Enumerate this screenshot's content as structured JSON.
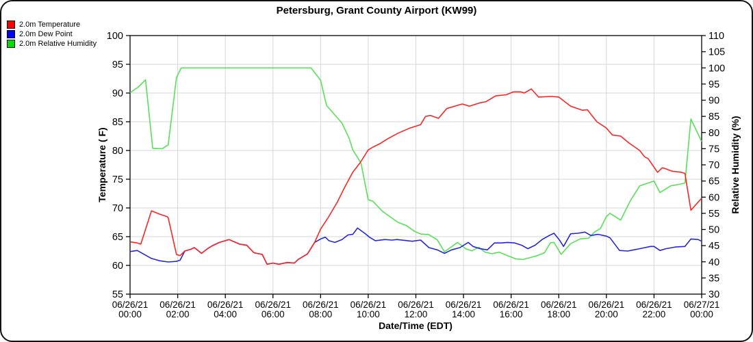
{
  "chart_data": {
    "type": "line",
    "title": "Petersburg, Grant County Airport (KW99)",
    "xlabel": "Date/Time (EDT)",
    "ylabel_left": "Temperature ( F)",
    "ylabel_right": "Relative Humidity (%)",
    "left_axis": {
      "min": 55,
      "max": 100,
      "step": 5,
      "ticks": [
        55,
        60,
        65,
        70,
        75,
        80,
        85,
        90,
        95,
        100
      ]
    },
    "right_axis": {
      "min": 30,
      "max": 110,
      "step": 5,
      "ticks": [
        30,
        35,
        40,
        45,
        50,
        55,
        60,
        65,
        70,
        75,
        80,
        85,
        90,
        95,
        100,
        105,
        110
      ]
    },
    "x_axis": {
      "hours_min": 0,
      "hours_max": 24,
      "tick_every_hours": 2
    },
    "x_ticks": [
      {
        "date": "06/26/21",
        "time": "00:00",
        "hour": 0
      },
      {
        "date": "06/26/21",
        "time": "02:00",
        "hour": 2
      },
      {
        "date": "06/26/21",
        "time": "04:00",
        "hour": 4
      },
      {
        "date": "06/26/21",
        "time": "06:00",
        "hour": 6
      },
      {
        "date": "06/26/21",
        "time": "08:00",
        "hour": 8
      },
      {
        "date": "06/26/21",
        "time": "10:00",
        "hour": 10
      },
      {
        "date": "06/26/21",
        "time": "12:00",
        "hour": 12
      },
      {
        "date": "06/26/21",
        "time": "14:00",
        "hour": 14
      },
      {
        "date": "06/26/21",
        "time": "16:00",
        "hour": 16
      },
      {
        "date": "06/26/21",
        "time": "18:00",
        "hour": 18
      },
      {
        "date": "06/26/21",
        "time": "20:00",
        "hour": 20
      },
      {
        "date": "06/26/21",
        "time": "22:00",
        "hour": 22
      },
      {
        "date": "06/27/21",
        "time": "00:00",
        "hour": 24
      }
    ],
    "legend": [
      {
        "label": "2.0m Temperature",
        "color": "#ff0000"
      },
      {
        "label": "2.0m Dew Point",
        "color": "#0000ff"
      },
      {
        "label": "2.0m Relative Humidity",
        "color": "#00dd00"
      }
    ],
    "colors": {
      "grid": "#d6d6d6",
      "axis": "#000000",
      "temperature_line": "#ff2222",
      "dew_point_line": "#2424e0",
      "humidity_line": "#55e055"
    },
    "grid": {
      "horizontal": true,
      "vertical": true
    },
    "series": [
      {
        "id": "temperature",
        "name": "2.0m Temperature",
        "axis": "left",
        "color": "#ff2222",
        "units": "F",
        "points": [
          [
            0.0,
            64.1
          ],
          [
            0.3,
            63.9
          ],
          [
            0.45,
            63.7
          ],
          [
            0.9,
            69.5
          ],
          [
            1.25,
            68.9
          ],
          [
            1.55,
            68.5
          ],
          [
            1.6,
            68.3
          ],
          [
            1.95,
            61.9
          ],
          [
            2.1,
            61.7
          ],
          [
            2.3,
            62.5
          ],
          [
            2.55,
            62.8
          ],
          [
            2.7,
            63.1
          ],
          [
            3.0,
            62.1
          ],
          [
            3.25,
            62.9
          ],
          [
            3.45,
            63.4
          ],
          [
            3.75,
            64.0
          ],
          [
            4.0,
            64.3
          ],
          [
            4.15,
            64.5
          ],
          [
            4.6,
            63.7
          ],
          [
            4.9,
            63.5
          ],
          [
            5.2,
            62.2
          ],
          [
            5.55,
            61.9
          ],
          [
            5.75,
            60.2
          ],
          [
            6.0,
            60.4
          ],
          [
            6.25,
            60.2
          ],
          [
            6.6,
            60.5
          ],
          [
            6.9,
            60.4
          ],
          [
            7.05,
            61.0
          ],
          [
            7.45,
            62.0
          ],
          [
            7.75,
            64.0
          ],
          [
            8.0,
            66.3
          ],
          [
            8.3,
            68.2
          ],
          [
            8.7,
            71.0
          ],
          [
            9.0,
            73.5
          ],
          [
            9.35,
            76.2
          ],
          [
            9.65,
            77.8
          ],
          [
            10.0,
            80.1
          ],
          [
            10.2,
            80.6
          ],
          [
            10.5,
            81.2
          ],
          [
            10.8,
            82.0
          ],
          [
            11.25,
            83.0
          ],
          [
            11.75,
            83.9
          ],
          [
            12.2,
            84.5
          ],
          [
            12.4,
            85.9
          ],
          [
            12.6,
            86.1
          ],
          [
            12.95,
            85.6
          ],
          [
            13.3,
            87.3
          ],
          [
            13.95,
            88.1
          ],
          [
            14.25,
            87.7
          ],
          [
            14.7,
            88.3
          ],
          [
            14.95,
            88.5
          ],
          [
            15.35,
            89.5
          ],
          [
            15.8,
            89.7
          ],
          [
            16.1,
            90.2
          ],
          [
            16.4,
            90.2
          ],
          [
            16.55,
            90.0
          ],
          [
            16.85,
            90.7
          ],
          [
            17.15,
            89.3
          ],
          [
            17.7,
            89.4
          ],
          [
            18.0,
            89.3
          ],
          [
            18.5,
            87.7
          ],
          [
            19.0,
            87.0
          ],
          [
            19.2,
            87.1
          ],
          [
            19.6,
            85.0
          ],
          [
            20.0,
            83.9
          ],
          [
            20.25,
            82.7
          ],
          [
            20.6,
            82.5
          ],
          [
            20.95,
            81.3
          ],
          [
            21.4,
            80.0
          ],
          [
            21.6,
            78.9
          ],
          [
            21.75,
            78.6
          ],
          [
            22.0,
            77.1
          ],
          [
            22.15,
            76.2
          ],
          [
            22.35,
            77.0
          ],
          [
            22.5,
            76.8
          ],
          [
            22.75,
            76.4
          ],
          [
            23.15,
            76.2
          ],
          [
            23.3,
            76.0
          ],
          [
            23.55,
            69.6
          ],
          [
            24.0,
            71.7
          ]
        ]
      },
      {
        "id": "dew-point",
        "name": "2.0m Dew Point",
        "axis": "left",
        "color": "#2424e0",
        "units": "F",
        "points": [
          [
            0.0,
            62.4
          ],
          [
            0.3,
            62.6
          ],
          [
            0.9,
            61.2
          ],
          [
            1.25,
            60.8
          ],
          [
            1.6,
            60.6
          ],
          [
            1.95,
            60.7
          ],
          [
            2.1,
            60.9
          ],
          [
            2.3,
            62.5
          ],
          [
            2.55,
            62.8
          ],
          [
            2.7,
            63.1
          ],
          [
            3.0,
            62.1
          ],
          [
            3.25,
            62.9
          ],
          [
            3.45,
            63.4
          ],
          [
            3.75,
            64.0
          ],
          [
            4.0,
            64.3
          ],
          [
            4.15,
            64.5
          ],
          [
            4.6,
            63.7
          ],
          [
            4.9,
            63.5
          ],
          [
            5.2,
            62.2
          ],
          [
            5.55,
            61.9
          ],
          [
            5.75,
            60.2
          ],
          [
            6.0,
            60.4
          ],
          [
            6.25,
            60.2
          ],
          [
            6.6,
            60.5
          ],
          [
            6.9,
            60.4
          ],
          [
            7.05,
            61.0
          ],
          [
            7.45,
            62.0
          ],
          [
            7.75,
            64.0
          ],
          [
            8.0,
            64.6
          ],
          [
            8.2,
            64.9
          ],
          [
            8.35,
            64.3
          ],
          [
            8.6,
            64.0
          ],
          [
            8.9,
            64.5
          ],
          [
            9.15,
            65.3
          ],
          [
            9.35,
            65.4
          ],
          [
            9.55,
            66.5
          ],
          [
            9.85,
            65.6
          ],
          [
            10.05,
            64.9
          ],
          [
            10.3,
            64.3
          ],
          [
            10.7,
            64.5
          ],
          [
            11.0,
            64.4
          ],
          [
            11.2,
            64.5
          ],
          [
            11.85,
            64.2
          ],
          [
            12.2,
            64.4
          ],
          [
            12.55,
            63.1
          ],
          [
            12.9,
            62.7
          ],
          [
            13.2,
            62.1
          ],
          [
            13.5,
            62.7
          ],
          [
            13.85,
            63.1
          ],
          [
            14.2,
            64.0
          ],
          [
            14.4,
            63.3
          ],
          [
            14.7,
            62.9
          ],
          [
            15.0,
            62.7
          ],
          [
            15.3,
            63.9
          ],
          [
            15.6,
            63.9
          ],
          [
            15.85,
            64.0
          ],
          [
            16.15,
            63.9
          ],
          [
            16.45,
            63.5
          ],
          [
            16.7,
            62.9
          ],
          [
            17.0,
            63.5
          ],
          [
            17.3,
            64.5
          ],
          [
            17.6,
            65.2
          ],
          [
            17.8,
            65.6
          ],
          [
            18.05,
            64.3
          ],
          [
            18.2,
            63.3
          ],
          [
            18.5,
            65.5
          ],
          [
            18.8,
            65.6
          ],
          [
            19.1,
            65.8
          ],
          [
            19.35,
            65.2
          ],
          [
            19.65,
            65.4
          ],
          [
            20.0,
            65.1
          ],
          [
            20.15,
            64.8
          ],
          [
            20.55,
            62.6
          ],
          [
            20.9,
            62.5
          ],
          [
            21.15,
            62.7
          ],
          [
            21.4,
            62.9
          ],
          [
            21.85,
            63.3
          ],
          [
            22.0,
            63.3
          ],
          [
            22.25,
            62.6
          ],
          [
            22.5,
            62.9
          ],
          [
            22.9,
            63.2
          ],
          [
            23.3,
            63.3
          ],
          [
            23.55,
            64.6
          ],
          [
            23.85,
            64.5
          ],
          [
            24.0,
            64.2
          ]
        ]
      },
      {
        "id": "relative-humidity",
        "name": "2.0m Relative Humidity",
        "axis": "right",
        "color": "#55e055",
        "units": "%",
        "points": [
          [
            0.0,
            92.3
          ],
          [
            0.35,
            94.1
          ],
          [
            0.65,
            96.3
          ],
          [
            0.95,
            75.1
          ],
          [
            1.35,
            75.0
          ],
          [
            1.6,
            76.2
          ],
          [
            1.95,
            97.0
          ],
          [
            2.15,
            100.0
          ],
          [
            7.6,
            100.0
          ],
          [
            8.0,
            96.2
          ],
          [
            8.25,
            88.4
          ],
          [
            8.9,
            82.9
          ],
          [
            9.2,
            78.2
          ],
          [
            9.35,
            74.6
          ],
          [
            9.55,
            72.3
          ],
          [
            9.7,
            70.4
          ],
          [
            10.0,
            59.2
          ],
          [
            10.2,
            58.7
          ],
          [
            10.6,
            55.6
          ],
          [
            11.25,
            52.2
          ],
          [
            11.6,
            51.2
          ],
          [
            11.95,
            49.4
          ],
          [
            12.2,
            48.6
          ],
          [
            12.55,
            48.4
          ],
          [
            12.9,
            46.8
          ],
          [
            13.2,
            43.1
          ],
          [
            13.75,
            46.0
          ],
          [
            14.1,
            44.0
          ],
          [
            14.35,
            43.4
          ],
          [
            14.65,
            44.5
          ],
          [
            14.9,
            43.0
          ],
          [
            15.2,
            42.5
          ],
          [
            15.5,
            43.0
          ],
          [
            15.85,
            41.9
          ],
          [
            16.2,
            40.9
          ],
          [
            16.5,
            40.7
          ],
          [
            16.8,
            41.3
          ],
          [
            17.1,
            41.9
          ],
          [
            17.4,
            42.8
          ],
          [
            17.65,
            45.9
          ],
          [
            17.8,
            46.0
          ],
          [
            18.1,
            42.3
          ],
          [
            18.5,
            45.6
          ],
          [
            18.9,
            47.1
          ],
          [
            19.25,
            47.3
          ],
          [
            19.5,
            49.2
          ],
          [
            19.75,
            50.3
          ],
          [
            20.0,
            54.0
          ],
          [
            20.15,
            55.0
          ],
          [
            20.6,
            52.9
          ],
          [
            21.0,
            58.8
          ],
          [
            21.4,
            63.5
          ],
          [
            22.0,
            65.0
          ],
          [
            22.25,
            61.4
          ],
          [
            22.7,
            63.5
          ],
          [
            23.15,
            64.1
          ],
          [
            23.3,
            64.4
          ],
          [
            23.55,
            84.2
          ],
          [
            24.0,
            77.2
          ]
        ]
      }
    ]
  }
}
